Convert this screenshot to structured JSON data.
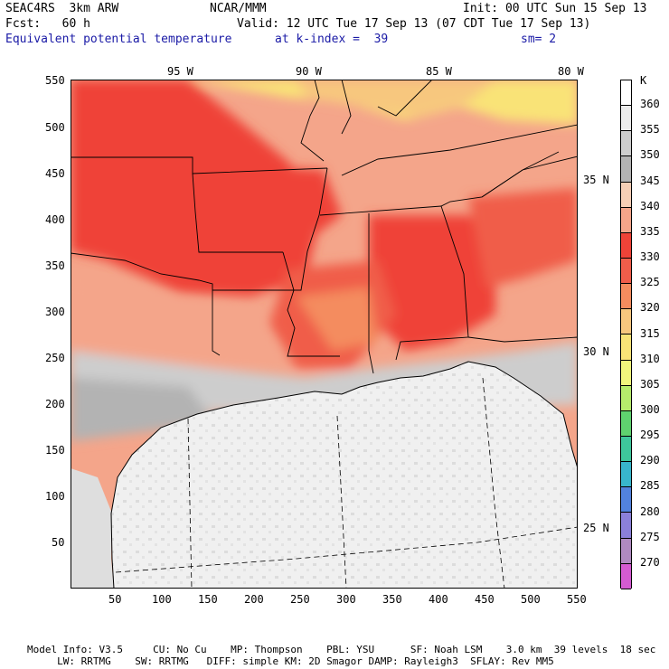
{
  "header": {
    "model": "SEAC4RS  3km ARW",
    "org": "NCAR/MMM",
    "init": "Init: 00 UTC Sun 15 Sep 13",
    "fcst": "Fcst:   60 h",
    "valid": "Valid: 12 UTC Tue 17 Sep 13 (07 CDT Tue 17 Sep 13)",
    "field": "Equivalent potential temperature",
    "level": "at k-index =  39",
    "smooth": "sm= 2"
  },
  "map": {
    "lon_labels": [
      "95 W",
      "90 W",
      "85 W",
      "80 W"
    ],
    "lat_labels": [
      "35 N",
      "30 N",
      "25 N"
    ],
    "x_ticks": [
      "50",
      "100",
      "150",
      "200",
      "250",
      "300",
      "350",
      "400",
      "450",
      "500",
      "550"
    ],
    "y_ticks": [
      "550",
      "500",
      "450",
      "400",
      "350",
      "300",
      "250",
      "200",
      "150",
      "100",
      "50"
    ]
  },
  "colorbar": {
    "unit": "K",
    "levels": [
      "360",
      "355",
      "350",
      "345",
      "340",
      "335",
      "330",
      "325",
      "320",
      "315",
      "310",
      "305",
      "300",
      "295",
      "290",
      "285",
      "280",
      "275",
      "270"
    ],
    "colors": [
      "#ffffff",
      "#ececec",
      "#cdcdcd",
      "#b3b3b3",
      "#f6cfb6",
      "#f4a58a",
      "#ef4338",
      "#f05d4a",
      "#f48c5e",
      "#f7c77e",
      "#f9e377",
      "#f1f57c",
      "#b6ec6c",
      "#5fd26f",
      "#3ec79c",
      "#38b6cc",
      "#5282dd",
      "#8b80d9",
      "#b08ac0",
      "#d45bd1"
    ]
  },
  "footer": {
    "line1": "Model Info: V3.5     CU: No Cu    MP: Thompson    PBL: YSU      SF: Noah LSM    3.0 km  39 levels  18 sec",
    "line2": "     LW: RRTMG    SW: RRTMG   DIFF: simple KM: 2D Smagor DAMP: Rayleigh3  SFLAY: Rev MM5"
  }
}
